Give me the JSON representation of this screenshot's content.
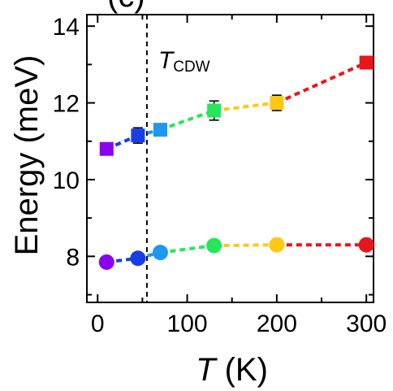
{
  "chart_data": {
    "type": "scatter",
    "panel_label": "(c)",
    "xlabel_symbol": "T",
    "xlabel_unit": " (K)",
    "ylabel": "Energy (meV)",
    "xlim": [
      -12,
      308
    ],
    "ylim": [
      6.8,
      14.3
    ],
    "x_ticks": [
      0,
      100,
      200,
      300
    ],
    "x_minor_ticks": [
      50,
      150,
      250
    ],
    "y_ticks": [
      8,
      10,
      12,
      14
    ],
    "y_minor_ticks": [
      7,
      9,
      11,
      13
    ],
    "grid": false,
    "legend": "none",
    "annotation": {
      "symbol": "T",
      "subscript": "CDW",
      "x": 55,
      "line_style": "dashed vertical"
    },
    "series": [
      {
        "marker": "square",
        "line_style": "dashed",
        "points": [
          {
            "x": 10,
            "y": 10.8,
            "err": 0.05,
            "color": "#8a00f0"
          },
          {
            "x": 45,
            "y": 11.15,
            "err": 0.2,
            "color": "#1a3ee6"
          },
          {
            "x": 70,
            "y": 11.3,
            "err": 0.1,
            "color": "#1c98f0"
          },
          {
            "x": 130,
            "y": 11.8,
            "err": 0.25,
            "color": "#28e65a"
          },
          {
            "x": 200,
            "y": 12.0,
            "err": 0.2,
            "color": "#ffc814"
          },
          {
            "x": 300,
            "y": 13.05,
            "err": 0.12,
            "color": "#e8161c"
          }
        ]
      },
      {
        "marker": "circle",
        "line_style": "dashed",
        "points": [
          {
            "x": 10,
            "y": 7.85,
            "color": "#8a00f0"
          },
          {
            "x": 45,
            "y": 7.95,
            "color": "#1a3ee6"
          },
          {
            "x": 70,
            "y": 8.1,
            "color": "#1c98f0"
          },
          {
            "x": 130,
            "y": 8.28,
            "color": "#28e65a"
          },
          {
            "x": 200,
            "y": 8.3,
            "color": "#ffc814"
          },
          {
            "x": 300,
            "y": 8.3,
            "color": "#e8161c"
          }
        ]
      }
    ]
  }
}
